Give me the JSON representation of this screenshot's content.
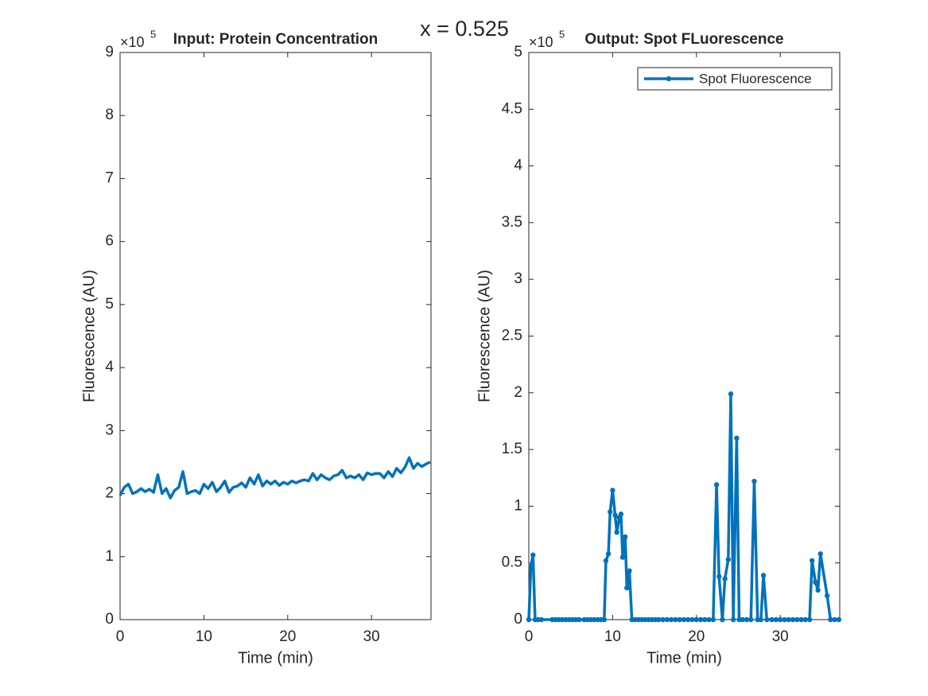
{
  "title": "x = 0.525",
  "chart_data": [
    {
      "type": "line",
      "title": "Input: Protein Concentration",
      "x_label": "Time (min)",
      "y_label": "Fluorescence (AU)",
      "y_multiplier": {
        "base": "×10",
        "exponent": "5"
      },
      "xlim": [
        0,
        37.1
      ],
      "xticks": [
        0,
        10,
        20,
        30
      ],
      "ylim": [
        0,
        9
      ],
      "yticks": [
        0,
        1,
        2,
        3,
        4,
        5,
        6,
        7,
        8,
        9
      ],
      "x": [
        0,
        0.5,
        1,
        1.5,
        2,
        2.5,
        3,
        3.5,
        4,
        4.5,
        5,
        5.5,
        6,
        6.5,
        7,
        7.5,
        8,
        8.5,
        9,
        9.5,
        10,
        10.5,
        11,
        11.5,
        12,
        12.5,
        13,
        13.5,
        14,
        14.5,
        15,
        15.5,
        16,
        16.5,
        17,
        17.5,
        18,
        18.5,
        19,
        19.5,
        20,
        20.5,
        21,
        21.5,
        22,
        22.5,
        23,
        23.5,
        24,
        24.5,
        25,
        25.5,
        26,
        26.5,
        27,
        27.5,
        28,
        28.5,
        29,
        29.5,
        30,
        30.5,
        31,
        31.5,
        32,
        32.5,
        33,
        33.5,
        34,
        34.5,
        35,
        35.5,
        36,
        36.5,
        37
      ],
      "series": [
        {
          "color": "#0072bd",
          "marker": false,
          "values": [
            1.97,
            2.1,
            2.15,
            2.0,
            2.03,
            2.08,
            2.03,
            2.07,
            2.02,
            2.3,
            2.0,
            2.08,
            1.93,
            2.05,
            2.1,
            2.35,
            2.0,
            2.03,
            2.05,
            2.0,
            2.15,
            2.08,
            2.18,
            2.03,
            2.1,
            2.2,
            2.02,
            2.1,
            2.12,
            2.17,
            2.1,
            2.25,
            2.15,
            2.3,
            2.12,
            2.2,
            2.15,
            2.2,
            2.13,
            2.18,
            2.15,
            2.2,
            2.17,
            2.2,
            2.22,
            2.2,
            2.32,
            2.22,
            2.3,
            2.25,
            2.22,
            2.28,
            2.3,
            2.37,
            2.25,
            2.28,
            2.25,
            2.3,
            2.22,
            2.33,
            2.3,
            2.32,
            2.32,
            2.25,
            2.35,
            2.27,
            2.4,
            2.33,
            2.42,
            2.57,
            2.4,
            2.48,
            2.43,
            2.47,
            2.5
          ]
        }
      ]
    },
    {
      "type": "line",
      "title": "Output: Spot FLuorescence",
      "x_label": "Time (min)",
      "y_label": "Fluorescence (AU)",
      "y_multiplier": {
        "base": "×10",
        "exponent": "5"
      },
      "xlim": [
        0,
        37.1
      ],
      "xticks": [
        0,
        10,
        20,
        30
      ],
      "ylim": [
        0,
        5
      ],
      "yticks": [
        0,
        0.5,
        1,
        1.5,
        2,
        2.5,
        3,
        3.5,
        4,
        4.5,
        5
      ],
      "legend": "northeast",
      "x": [
        0,
        0.25,
        0.5,
        0.75,
        1.1,
        1.5,
        2.8,
        3.2,
        3.6,
        4,
        4.4,
        4.8,
        5.2,
        5.6,
        6,
        6.6,
        7,
        7.4,
        7.8,
        8.2,
        8.6,
        9,
        9.2,
        9.5,
        9.7,
        10,
        10.3,
        10.5,
        10.8,
        11,
        11.2,
        11.5,
        11.7,
        12,
        12.3,
        12.7,
        13.1,
        13.5,
        13.9,
        14.3,
        14.7,
        15.1,
        15.5,
        16,
        16.5,
        17,
        17.5,
        18,
        18.5,
        19,
        19.5,
        20,
        20.5,
        21,
        21.5,
        22,
        22.4,
        22.7,
        23.1,
        23.4,
        23.8,
        24.1,
        24.4,
        24.8,
        25.1,
        25.5,
        26,
        26.5,
        26.9,
        27.3,
        27.7,
        28,
        28.4,
        29,
        29.5,
        30,
        30.5,
        31,
        31.5,
        32,
        32.5,
        33,
        33.5,
        33.8,
        34.2,
        34.5,
        34.8,
        35.6,
        36,
        36.5,
        37
      ],
      "series": [
        {
          "name": "Spot Fluorescence",
          "color": "#0072bd",
          "marker": true,
          "values": [
            0,
            0.47,
            0.57,
            0,
            0,
            0,
            0,
            0,
            0,
            0,
            0,
            0,
            0,
            0,
            0,
            0,
            0,
            0,
            0,
            0,
            0,
            0,
            0.52,
            0.58,
            0.95,
            1.14,
            0.92,
            0.77,
            0.9,
            0.93,
            0.55,
            0.73,
            0.28,
            0.43,
            0,
            0,
            0,
            0,
            0,
            0,
            0,
            0,
            0,
            0,
            0,
            0,
            0,
            0,
            0,
            0,
            0,
            0,
            0,
            0,
            0,
            0,
            1.19,
            0.38,
            0,
            0.36,
            0.53,
            1.99,
            0,
            1.6,
            0,
            0,
            0,
            0,
            1.22,
            0,
            0,
            0.39,
            0,
            0,
            0,
            0,
            0,
            0,
            0,
            0,
            0,
            0,
            0,
            0.52,
            0.33,
            0.26,
            0.58,
            0.21,
            0,
            0,
            0
          ]
        }
      ]
    }
  ]
}
